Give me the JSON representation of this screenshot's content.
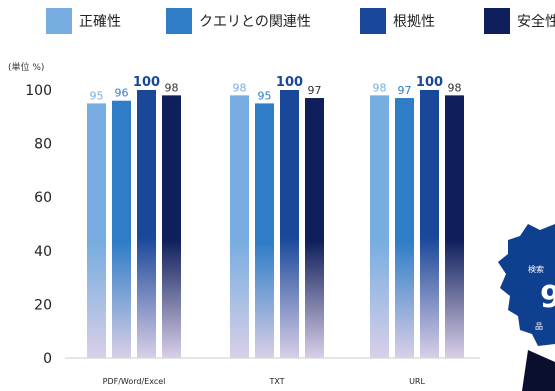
{
  "unit_label": "(単位 %)",
  "badge": {
    "text_top": "検索",
    "text_big": "9",
    "text_bottom": "品"
  },
  "colors": {
    "accuracy": "#77ade0",
    "relevance": "#2f7dc6",
    "grounding": "#19489a",
    "safety": "#0f1f5c"
  },
  "chart_data": {
    "type": "bar",
    "categories": [
      "PDF/Word/Excel",
      "TXT",
      "URL"
    ],
    "series": [
      {
        "name": "正確性",
        "values": [
          95,
          98,
          98
        ]
      },
      {
        "name": "クエリとの関連性",
        "values": [
          96,
          95,
          97
        ]
      },
      {
        "name": "根拠性",
        "values": [
          100,
          100,
          100
        ]
      },
      {
        "name": "安全性",
        "values": [
          98,
          97,
          98
        ]
      }
    ],
    "yticks": [
      "0",
      "20",
      "40",
      "60",
      "80",
      "100"
    ],
    "ylim": [
      0,
      100
    ],
    "title": "",
    "xlabel": "",
    "ylabel": "",
    "legend_position": "top",
    "grid": false
  }
}
